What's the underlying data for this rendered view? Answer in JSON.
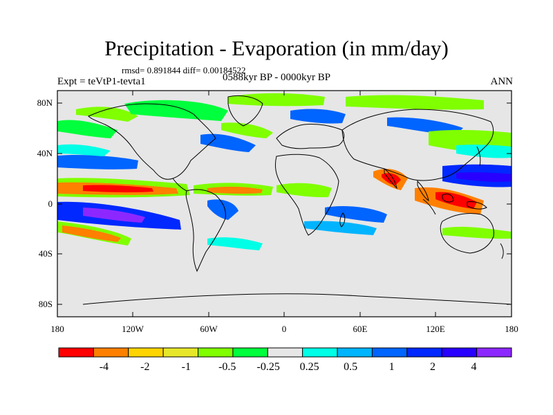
{
  "title": "Precipitation - Evaporation (in mm/day)",
  "stats": "rmsd= 0.891844  diff= 0.00184522",
  "experiment": "Expt = teVtP1-tevta1",
  "period": "0588kyr BP - 0000kyr BP",
  "season": "ANN",
  "lat_ticks": [
    "80N",
    "40N",
    "0",
    "40S",
    "80S"
  ],
  "lon_ticks": [
    "180",
    "120W",
    "60W",
    "0",
    "60E",
    "120E",
    "180"
  ],
  "colorbar": {
    "colors": [
      "#ff0000",
      "#ff8000",
      "#ffd400",
      "#e6e62a",
      "#80ff00",
      "#00ff3c",
      "#e6e6e6",
      "#00ffe6",
      "#00b4ff",
      "#0064ff",
      "#0028ff",
      "#2800ff",
      "#8c28ff"
    ],
    "labels": [
      "-4",
      "-2",
      "-1",
      "-0.5",
      "-0.25",
      "0.25",
      "0.5",
      "1",
      "2",
      "4"
    ]
  },
  "colors": {
    "ocean_background": "#e6e6e6",
    "coastline": "#000000"
  }
}
